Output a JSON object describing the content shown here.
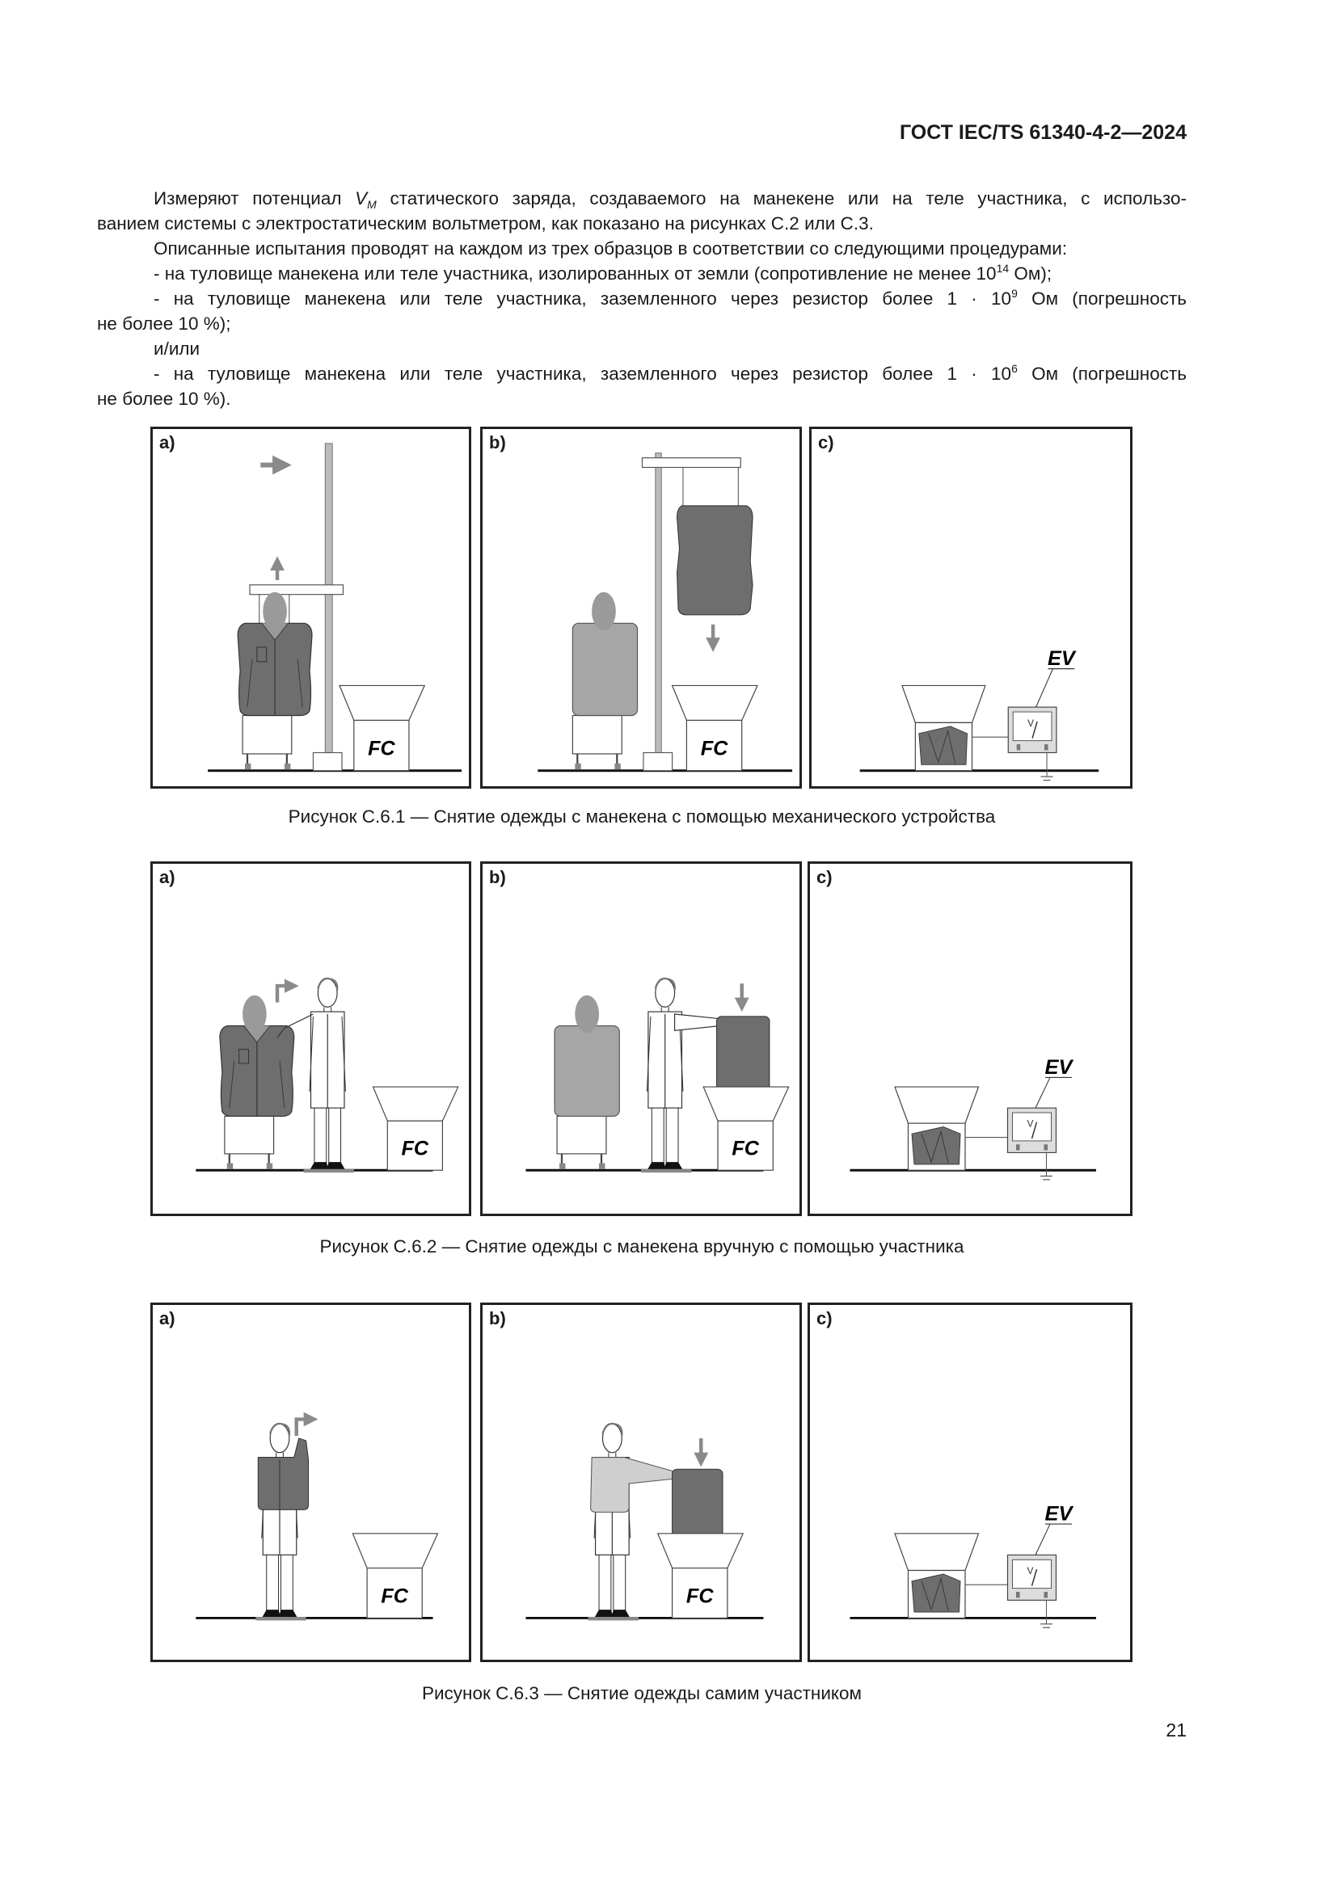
{
  "header": {
    "doc_id": "ГОСТ IEC/TS 61340-4-2—2024"
  },
  "body": {
    "p1_l1_a": "Измеряют потенциал ",
    "p1_l1_v": "V",
    "p1_l1_sub": "M",
    "p1_l1_b": " статического заряда, создаваемого на манекене или на теле участника, с использо-",
    "p1_l2": "ванием системы с электростатическим вольтметром, как показано на рисунках С.2 или С.3.",
    "p2": "Описанные испытания проводят на каждом из трех образцов в соответствии со следующими процедурами:",
    "b1_a": "- на туловище манекена или теле участника, изолированных от земли (сопротивление не менее 10",
    "b1_sup": "14",
    "b1_b": " Ом);",
    "b2_a": "- на туловище манекена или теле участника, заземленного через резистор более 1 · 10",
    "b2_sup": "9",
    "b2_b": " Ом (погрешность",
    "b2_l2": "не более 10 %);",
    "andor": "и/или",
    "b3_a": "- на туловище манекена или теле участника, заземленного через резистор более 1 · 10",
    "b3_sup": "6",
    "b3_b": " Ом (погрешность",
    "b3_l2": "не более 10 %)."
  },
  "figures": [
    {
      "panels": [
        "a)",
        "b)",
        "c)"
      ],
      "caption": "Рисунок С.6.1 — Снятие одежды с манекена с помощью механического устройства"
    },
    {
      "panels": [
        "a)",
        "b)",
        "c)"
      ],
      "caption": "Рисунок С.6.2 — Снятие одежды с манекена вручную с помощью участника"
    },
    {
      "panels": [
        "a)",
        "b)",
        "c)"
      ],
      "caption": "Рисунок С.6.3 — Снятие одежды самим участником"
    }
  ],
  "labels": {
    "faraday_cup": "FC",
    "voltmeter": "EV"
  },
  "page_number": "21",
  "colors": {
    "clothing": "#6e6e6e",
    "mannequin": "#a6a6a6",
    "arrow": "#8a8a8a",
    "sweater": "#cfcfcf"
  }
}
